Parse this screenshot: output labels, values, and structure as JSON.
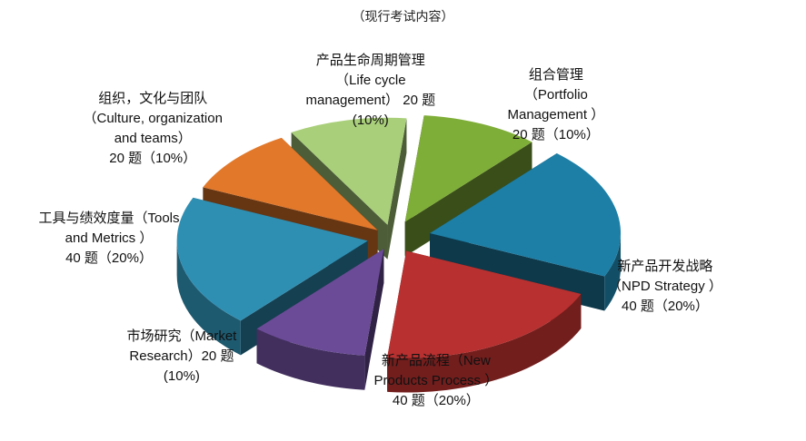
{
  "chart_data": {
    "type": "pie",
    "title": "（现行考试内容）",
    "slices": [
      {
        "lines": [
          "组合管理",
          "（Portfolio",
          "Management ）",
          "20 题（10%）"
        ],
        "value": 10,
        "color": "#7fae38"
      },
      {
        "lines": [
          "新产品开发战略",
          "（NPD Strategy ）",
          "40 题（20%）"
        ],
        "value": 20,
        "color": "#1d7fa6"
      },
      {
        "lines": [
          "新产品流程（New",
          "Products Process ）",
          "40 题（20%）"
        ],
        "value": 20,
        "color": "#b8302f"
      },
      {
        "lines": [
          "市场研究（Market",
          "Research）20 题",
          "(10%)"
        ],
        "value": 10,
        "color": "#6b4b97"
      },
      {
        "lines": [
          "工具与绩效度量（Tools",
          "and Metrics ）",
          "40 题（20%）"
        ],
        "value": 20,
        "color": "#2f8fb3"
      },
      {
        "lines": [
          "组织，文化与团队",
          "（Culture, organization",
          "and teams）",
          "20 题（10%）"
        ],
        "value": 10,
        "color": "#e2782a"
      },
      {
        "lines": [
          "产品生命周期管理",
          "（Life cycle",
          "management） 20 题",
          "(10%)"
        ],
        "value": 10,
        "color": "#a9cf7a"
      }
    ]
  }
}
